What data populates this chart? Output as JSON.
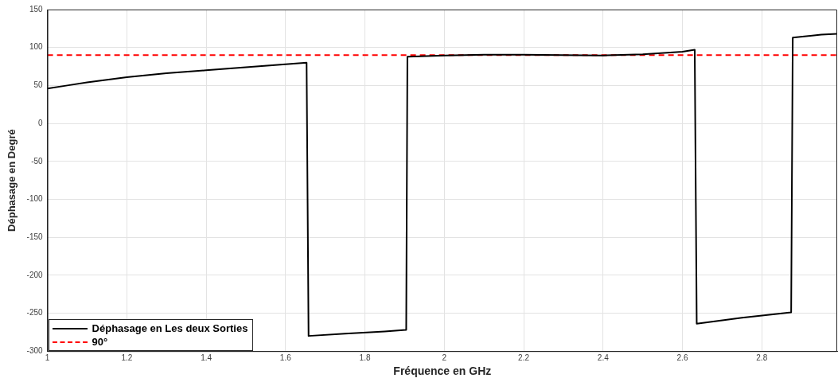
{
  "chart_data": {
    "type": "line",
    "xlabel": "Fréquence en GHz",
    "ylabel": "Déphasage en Degré",
    "xlim": [
      1,
      2.99
    ],
    "xticks": [
      1,
      1.2,
      1.4,
      1.6,
      1.8,
      2,
      2.2,
      2.4,
      2.6,
      2.8
    ],
    "ylim": [
      -300,
      150
    ],
    "yticks": [
      -300,
      -250,
      -200,
      -150,
      -100,
      -50,
      0,
      50,
      100,
      150
    ],
    "grid": true,
    "legend": "bottom left",
    "marker": "none",
    "line_style": "solid",
    "series": [
      {
        "name": "Déphasage en Les deux Sorties",
        "color": "#000000",
        "x": [
          1,
          1.05,
          1.1,
          1.2,
          1.3,
          1.4,
          1.5,
          1.6,
          1.653,
          1.658,
          1.75,
          1.85,
          1.904,
          1.907,
          2,
          2.1,
          2.2,
          2.3,
          2.4,
          2.5,
          2.6,
          2.631,
          2.636,
          2.75,
          2.874,
          2.878,
          2.95,
          2.99
        ],
        "values": [
          46,
          50,
          54,
          61,
          66,
          70,
          74,
          78,
          80,
          -280,
          -277,
          -274,
          -272,
          88,
          89.5,
          90.5,
          90.5,
          90,
          89.5,
          91,
          94.5,
          97,
          -264,
          -256,
          -249,
          113,
          117,
          118
        ]
      }
    ],
    "ref_lines": [
      {
        "axis": "y",
        "value": 90,
        "label": "90°",
        "color": "#ff0000",
        "line_style": "dashed"
      }
    ]
  }
}
